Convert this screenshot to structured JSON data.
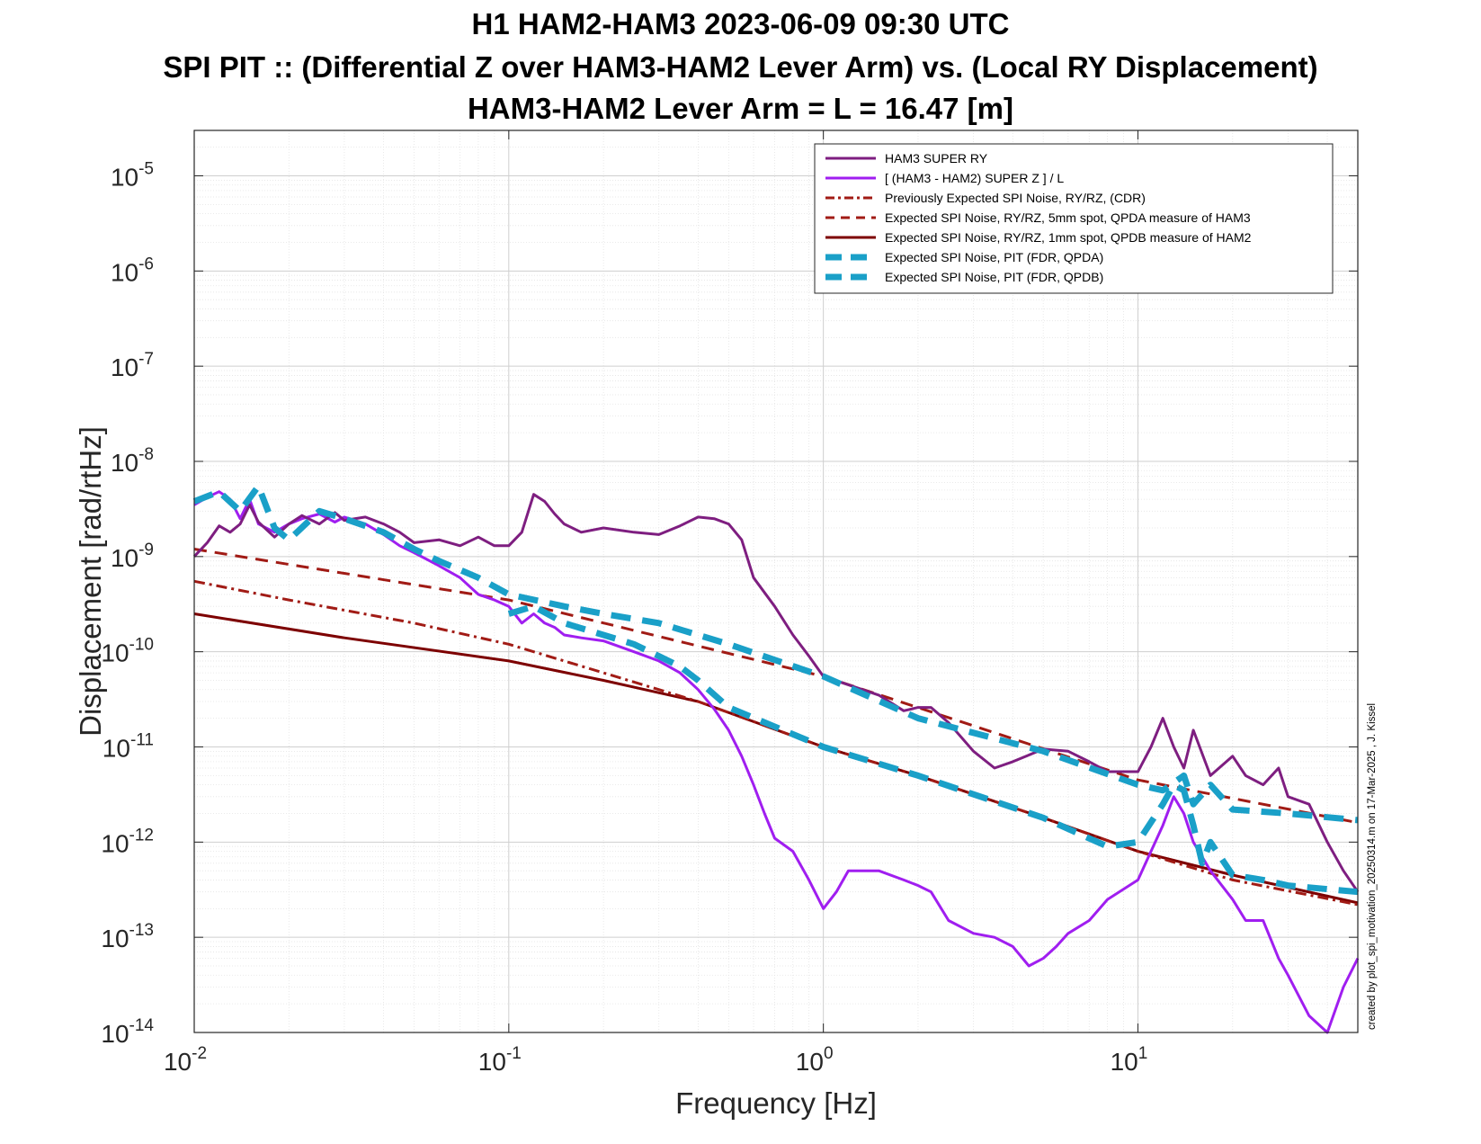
{
  "title": {
    "line1": "H1 HAM2-HAM3 2023-06-09 09:30 UTC",
    "line2": "SPI PIT :: (Differential Z over HAM3-HAM2 Lever Arm) vs. (Local RY Displacement)",
    "line3": "HAM3-HAM2 Lever Arm = L = 16.47 [m]"
  },
  "footer": "created by plot_spi_motivation_20250314.m on 17-Mar-2025 , J. Kissel",
  "chart_data": {
    "type": "line",
    "xlabel": "Frequency [Hz]",
    "ylabel": "Displacement [rad/rtHz]",
    "xscale": "log",
    "yscale": "log",
    "xlim": [
      0.01,
      50
    ],
    "ylim": [
      1e-14,
      3e-05
    ],
    "grid": true,
    "legend_position": "top-right",
    "x_ticks": [
      {
        "value": 0.01,
        "base": "10",
        "exp": "-2"
      },
      {
        "value": 0.1,
        "base": "10",
        "exp": "-1"
      },
      {
        "value": 1,
        "base": "10",
        "exp": "0"
      },
      {
        "value": 10,
        "base": "10",
        "exp": "1"
      }
    ],
    "y_ticks": [
      {
        "value": 1e-14,
        "base": "10",
        "exp": "-14"
      },
      {
        "value": 1e-13,
        "base": "10",
        "exp": "-13"
      },
      {
        "value": 1e-12,
        "base": "10",
        "exp": "-12"
      },
      {
        "value": 1e-11,
        "base": "10",
        "exp": "-11"
      },
      {
        "value": 1e-10,
        "base": "10",
        "exp": "-10"
      },
      {
        "value": 1e-09,
        "base": "10",
        "exp": "-9"
      },
      {
        "value": 1e-08,
        "base": "10",
        "exp": "-8"
      },
      {
        "value": 1e-07,
        "base": "10",
        "exp": "-7"
      },
      {
        "value": 1e-06,
        "base": "10",
        "exp": "-6"
      },
      {
        "value": 1e-05,
        "base": "10",
        "exp": "-5"
      }
    ],
    "series": [
      {
        "name": "HAM3 SUPER RY",
        "color": "#7e1e80",
        "style": "solid",
        "x": [
          0.01,
          0.011,
          0.012,
          0.013,
          0.014,
          0.015,
          0.016,
          0.018,
          0.02,
          0.022,
          0.025,
          0.028,
          0.03,
          0.035,
          0.04,
          0.045,
          0.05,
          0.06,
          0.07,
          0.08,
          0.09,
          0.1,
          0.11,
          0.12,
          0.13,
          0.14,
          0.15,
          0.17,
          0.2,
          0.25,
          0.3,
          0.35,
          0.4,
          0.45,
          0.5,
          0.55,
          0.6,
          0.7,
          0.8,
          0.9,
          1.0,
          1.2,
          1.5,
          1.8,
          2.0,
          2.2,
          2.5,
          3.0,
          3.5,
          4.0,
          5.0,
          6.0,
          7.0,
          8.0,
          10.0,
          11.0,
          12.0,
          13.0,
          14.0,
          15.0,
          17.0,
          20.0,
          22.0,
          25.0,
          28.0,
          30.0,
          35.0,
          40.0,
          45.0,
          50.0
        ],
        "y": [
          1e-09,
          1.4e-09,
          2.1e-09,
          1.8e-09,
          2.2e-09,
          3.5e-09,
          2.3e-09,
          1.6e-09,
          2.2e-09,
          2.7e-09,
          2.2e-09,
          2.9e-09,
          2.4e-09,
          2.6e-09,
          2.2e-09,
          1.8e-09,
          1.4e-09,
          1.5e-09,
          1.3e-09,
          1.6e-09,
          1.3e-09,
          1.3e-09,
          1.8e-09,
          4.5e-09,
          3.8e-09,
          2.8e-09,
          2.2e-09,
          1.8e-09,
          2e-09,
          1.8e-09,
          1.7e-09,
          2.1e-09,
          2.6e-09,
          2.5e-09,
          2.2e-09,
          1.5e-09,
          6e-10,
          3e-10,
          1.5e-10,
          9e-11,
          5.5e-11,
          4.5e-11,
          3.5e-11,
          2.4e-11,
          2.6e-11,
          2.6e-11,
          1.8e-11,
          9e-12,
          6e-12,
          7e-12,
          9.5e-12,
          9e-12,
          7e-12,
          5.5e-12,
          5.5e-12,
          1e-11,
          2e-11,
          1e-11,
          6e-12,
          1.5e-11,
          5e-12,
          8e-12,
          5e-12,
          4e-12,
          6e-12,
          3e-12,
          2.5e-12,
          1e-12,
          5e-13,
          3e-13
        ]
      },
      {
        "name": "[ (HAM3 - HAM2) SUPER Z ] / L",
        "color": "#a01ef0",
        "style": "solid",
        "x": [
          0.01,
          0.011,
          0.012,
          0.013,
          0.014,
          0.015,
          0.016,
          0.018,
          0.02,
          0.022,
          0.025,
          0.028,
          0.03,
          0.035,
          0.04,
          0.045,
          0.05,
          0.06,
          0.07,
          0.08,
          0.09,
          0.1,
          0.11,
          0.12,
          0.13,
          0.14,
          0.15,
          0.17,
          0.2,
          0.25,
          0.3,
          0.35,
          0.4,
          0.45,
          0.5,
          0.55,
          0.6,
          0.65,
          0.7,
          0.8,
          0.9,
          1.0,
          1.1,
          1.2,
          1.5,
          1.8,
          2.0,
          2.2,
          2.5,
          3.0,
          3.5,
          4.0,
          4.5,
          5.0,
          5.5,
          6.0,
          7.0,
          8.0,
          10.0,
          12.0,
          13.0,
          14.0,
          15.0,
          17.0,
          20.0,
          22.0,
          25.0,
          28.0,
          30.0,
          35.0,
          40.0,
          45.0,
          50.0
        ],
        "y": [
          3.5e-09,
          4.2e-09,
          4.8e-09,
          4e-09,
          2.5e-09,
          4e-09,
          2.2e-09,
          1.8e-09,
          2.2e-09,
          2.5e-09,
          2.8e-09,
          2.3e-09,
          2.6e-09,
          2.2e-09,
          1.7e-09,
          1.3e-09,
          1.1e-09,
          8e-10,
          6e-10,
          4e-10,
          3.5e-10,
          3e-10,
          2e-10,
          2.5e-10,
          2e-10,
          1.8e-10,
          1.5e-10,
          1.4e-10,
          1.3e-10,
          1e-10,
          8e-11,
          6e-11,
          4e-11,
          2.5e-11,
          1.5e-11,
          8e-12,
          4e-12,
          2e-12,
          1.1e-12,
          8e-13,
          4e-13,
          2e-13,
          3e-13,
          5e-13,
          5e-13,
          4e-13,
          3.5e-13,
          3e-13,
          1.5e-13,
          1.1e-13,
          1e-13,
          8e-14,
          5e-14,
          6e-14,
          8e-14,
          1.1e-13,
          1.5e-13,
          2.5e-13,
          4e-13,
          1.5e-12,
          3e-12,
          2e-12,
          1e-12,
          5e-13,
          2.5e-13,
          1.5e-13,
          1.5e-13,
          6e-14,
          4e-14,
          1.5e-14,
          1e-14,
          3e-14,
          6e-14
        ]
      },
      {
        "name": "Previously Expected SPI Noise, RY/RZ, (CDR)",
        "color": "#a11b15",
        "style": "dashdot",
        "x": [
          0.01,
          0.02,
          0.05,
          0.1,
          0.2,
          0.4,
          1.0,
          2.0,
          5.0,
          10.0,
          20.0,
          50.0
        ],
        "y": [
          5.5e-10,
          3.5e-10,
          2e-10,
          1.2e-10,
          6e-11,
          3e-11,
          1e-11,
          5e-12,
          1.8e-12,
          8e-13,
          4e-13,
          2.2e-13
        ]
      },
      {
        "name": "Expected SPI Noise, RY/RZ, 5mm spot, QPDA measure of HAM3",
        "color": "#a11b15",
        "style": "dashed",
        "x": [
          0.01,
          0.1,
          1.0,
          10.0,
          50.0
        ],
        "y": [
          1.2e-09,
          3.5e-10,
          5.5e-11,
          4.5e-12,
          1.6e-12
        ]
      },
      {
        "name": "Expected SPI Noise, RY/RZ, 1mm spot, QPDB measure of HAM2",
        "color": "#7d0000",
        "style": "solid",
        "x": [
          0.01,
          0.03,
          0.1,
          0.2,
          0.4,
          1.0,
          2.0,
          5.0,
          10.0,
          20.0,
          50.0
        ],
        "y": [
          2.5e-10,
          1.4e-10,
          8e-11,
          5e-11,
          3e-11,
          1e-11,
          5e-12,
          1.8e-12,
          8e-13,
          4.5e-13,
          2.3e-13
        ]
      },
      {
        "name": "Expected SPI Noise, PIT (FDR, QPDA)",
        "color": "#1aa0c8",
        "style": "thick-dashed",
        "x": [
          0.01,
          0.012,
          0.014,
          0.016,
          0.018,
          0.02,
          0.025,
          0.03,
          0.04,
          0.05,
          0.06,
          0.08,
          0.1,
          0.15,
          0.2,
          0.3,
          0.5,
          1.0,
          2.0,
          5.0,
          10.0,
          12.0,
          14.0,
          15.0,
          17.0,
          20.0,
          30.0,
          50.0
        ],
        "y": [
          3.8e-09,
          4.8e-09,
          3e-09,
          5.5e-09,
          2e-09,
          1.5e-09,
          3e-09,
          2.5e-09,
          1.8e-09,
          1.2e-09,
          9e-10,
          6e-10,
          4e-10,
          3e-10,
          2.5e-10,
          2e-10,
          1.2e-10,
          5.5e-11,
          2e-11,
          9e-12,
          4e-12,
          3.5e-12,
          5e-12,
          2.5e-12,
          4e-12,
          2.2e-12,
          2e-12,
          1.7e-12
        ]
      },
      {
        "name": "Expected SPI Noise, PIT (FDR, QPDB)",
        "color": "#1aa0c8",
        "style": "thick-dashed",
        "x": [
          0.1,
          0.12,
          0.15,
          0.2,
          0.25,
          0.3,
          0.35,
          0.4,
          0.5,
          1.0,
          2.0,
          5.0,
          8.0,
          10.0,
          12.0,
          13.0,
          14.0,
          15.0,
          16.0,
          17.0,
          20.0,
          25.0,
          30.0,
          50.0
        ],
        "y": [
          2.5e-10,
          3e-10,
          2e-10,
          1.5e-10,
          1.2e-10,
          9e-11,
          7e-11,
          5e-11,
          2.6e-11,
          1e-11,
          5e-12,
          1.8e-12,
          9e-13,
          1e-12,
          2.5e-12,
          4e-12,
          3.5e-12,
          1.5e-12,
          6e-13,
          1e-12,
          4.5e-13,
          4e-13,
          3.5e-13,
          3e-13
        ]
      }
    ]
  }
}
